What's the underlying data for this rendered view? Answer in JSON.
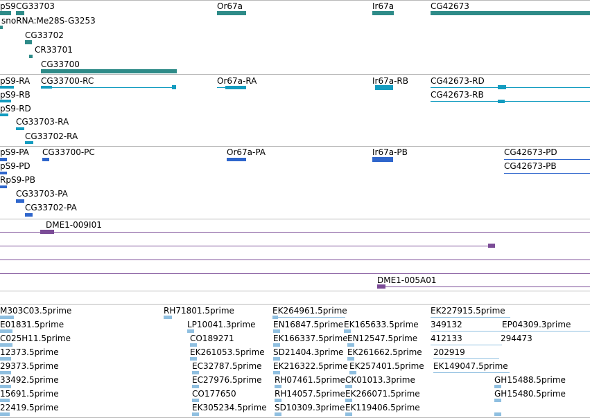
{
  "colors": {
    "gene": "#2e8b88",
    "transcript": "#139cc0",
    "protein": "#2f66cc",
    "clone": "#7b4c97",
    "est": "#8fbfe0",
    "separator": "#b8b8b8"
  },
  "tracks": {
    "genes": {
      "labels": [
        "pS9",
        "CG33703",
        "snoRNA:Me28S-G3253",
        "CG33702",
        "CR33701",
        "CG33700",
        "Or67a",
        "Ir67a",
        "CG42673"
      ]
    },
    "transcripts": {
      "labels": [
        "pS9-RA",
        "pS9-RB",
        "pS9-RD",
        "CG33703-RA",
        "CG33702-RA",
        "CG33700-RC",
        "Or67a-RA",
        "Ir67a-RB",
        "CG42673-RD",
        "CG42673-RB"
      ]
    },
    "proteins": {
      "labels": [
        "pS9-PA",
        "pS9-PD",
        "RpS9-PB",
        "CG33703-PA",
        "CG33702-PA",
        "CG33700-PC",
        "Or67a-PA",
        "Ir67a-PB",
        "CG42673-PD",
        "CG42673-PB"
      ]
    },
    "clones": {
      "labels": [
        "DME1-009I01",
        "DME1-005A01"
      ]
    },
    "ests": {
      "labels": [
        "M303C03.5prime",
        "E01831.5prime",
        "C025H11.5prime",
        "12373.5prime",
        "29373.5prime",
        "33492.5prime",
        "15691.5prime",
        "22419.5prime",
        "RH71801.5prime",
        "LP10041.3prime",
        "CO189271",
        "EK261053.5prime",
        "EC32787.5prime",
        "EC27976.5prime",
        "CO177650",
        "EK305234.5prime",
        "EK264961.5prime",
        "EN16847.5prime",
        "EK166337.5prime",
        "SD21404.3prime",
        "EK216322.5prime",
        "RH07461.5prime",
        "RH14057.5prime",
        "SD10309.3prime",
        "EK165633.5prime",
        "EN12547.5prime",
        "EK261662.5prime",
        "EK257401.5prime",
        "CK01013.3prime",
        "EK266071.5prime",
        "EK119406.5prime",
        "EK227915.5prime",
        "349132",
        "412133",
        "202919",
        "EK149047.5prime",
        "EP04309.3prime",
        "294473",
        "GH15488.5prime",
        "GH15480.5prime"
      ]
    }
  }
}
